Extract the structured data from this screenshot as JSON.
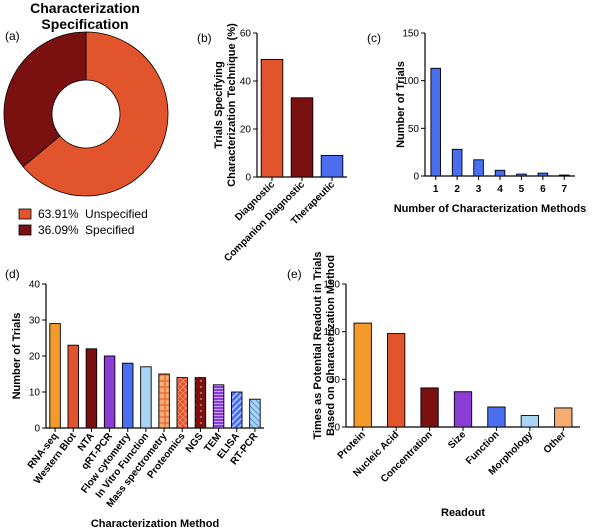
{
  "panels": {
    "a": "(a)",
    "b": "(b)",
    "c": "(c)",
    "d": "(d)",
    "e": "(e)"
  },
  "chart_data": [
    {
      "id": "a",
      "type": "pie",
      "title_lines": [
        "Characterization",
        "Specification"
      ],
      "slices": [
        {
          "label": "Unspecified",
          "percent_label": "63.91%",
          "value": 63.91,
          "color": "#e2552c"
        },
        {
          "label": "Specified",
          "percent_label": "36.09%",
          "value": 36.09,
          "color": "#7b1010"
        }
      ]
    },
    {
      "id": "b",
      "type": "bar",
      "categories": [
        "Diagnostic",
        "Companion Diagnostic",
        "Therapeutic"
      ],
      "values": [
        49,
        33,
        9
      ],
      "colors": [
        "#e2552c",
        "#7b1010",
        "#4a6ef0"
      ],
      "ylabel_lines": [
        "Trials Specifying",
        "Characterization Technique (%)"
      ],
      "xlabel": "",
      "ylim": [
        0,
        60
      ],
      "yticks": [
        0,
        20,
        40,
        60
      ]
    },
    {
      "id": "c",
      "type": "bar",
      "categories": [
        "1",
        "2",
        "3",
        "4",
        "5",
        "6",
        "7"
      ],
      "values": [
        113,
        28,
        17,
        6,
        2,
        3,
        1
      ],
      "colors": [
        "#4a6ef0"
      ],
      "ylabel_lines": [
        "Number of Trials"
      ],
      "xlabel": "Number of Characterization Methods",
      "ylim": [
        0,
        150
      ],
      "yticks": [
        0,
        50,
        100,
        150
      ]
    },
    {
      "id": "d",
      "type": "bar",
      "categories": [
        "RNA-seq",
        "Western Blot",
        "NTA",
        "qRT-PCR",
        "Flow cytometry",
        "In Vitro Function",
        "Mass spectrometry",
        "Proteomics",
        "NGS",
        "TEM",
        "ELISA",
        "RT-PCR"
      ],
      "values": [
        29,
        23,
        22,
        20,
        18,
        17,
        15,
        14,
        14,
        12,
        10,
        8
      ],
      "colors": [
        "#f39a2b",
        "#e2552c",
        "#7b1010",
        "#8a3ed6",
        "#4a6ef0",
        "#a9d4f7",
        "#f6ad72",
        "#e2552c",
        "#7b1010",
        "#8a3ed6",
        "#4a6ef0",
        "#a9d4f7"
      ],
      "ylabel_lines": [
        "Number of Trials"
      ],
      "xlabel": "Characterization Method",
      "ylim": [
        0,
        40
      ],
      "yticks": [
        0,
        10,
        20,
        30,
        40
      ]
    },
    {
      "id": "e",
      "type": "bar",
      "categories": [
        "Protein",
        "Nucleic Acid",
        "Concentration",
        "Size",
        "Function",
        "Morphology",
        "Other"
      ],
      "values": [
        109,
        98,
        41,
        37,
        21,
        12,
        20
      ],
      "colors": [
        "#f39a2b",
        "#e2552c",
        "#7b1010",
        "#8a3ed6",
        "#4a6ef0",
        "#a9d4f7",
        "#f6ad72"
      ],
      "ylabel_lines": [
        "Times as Potential Readout in Trials",
        "Based on Characterization Method"
      ],
      "xlabel": "Readout",
      "ylim": [
        0,
        150
      ],
      "yticks": [
        0,
        50,
        100,
        150
      ]
    }
  ]
}
